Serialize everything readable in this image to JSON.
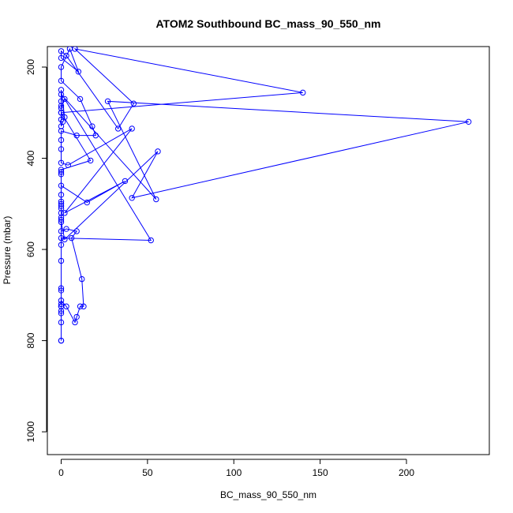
{
  "chart_data": {
    "type": "line",
    "title": "ATOM2 Southbound BC_mass_90_550_nm",
    "xlabel": "BC_mass_90_550_nm",
    "ylabel": "Pressure (mbar)",
    "xlim": [
      -8,
      248
    ],
    "ylim": [
      1050,
      155
    ],
    "y_inverted": true,
    "x_ticks": [
      0,
      50,
      100,
      150,
      200
    ],
    "y_ticks": [
      200,
      400,
      600,
      800,
      1000
    ],
    "grid": false,
    "legend": "none",
    "series_color": "#0000ff",
    "series": [
      {
        "values": [
          [
            0,
            800
          ],
          [
            0,
            800
          ],
          [
            0,
            760
          ],
          [
            0,
            740
          ],
          [
            0,
            735
          ],
          [
            0,
            725
          ],
          [
            0,
            712
          ],
          [
            3,
            725
          ],
          [
            8,
            760
          ],
          [
            9,
            748
          ],
          [
            11,
            725
          ],
          [
            13,
            725
          ],
          [
            12,
            665
          ],
          [
            6,
            575
          ],
          [
            9,
            560
          ],
          [
            3,
            555
          ],
          [
            0,
            560
          ],
          [
            0,
            590
          ],
          [
            0,
            575
          ],
          [
            52,
            580
          ],
          [
            2,
            270
          ],
          [
            0,
            290
          ],
          [
            0,
            260
          ],
          [
            55,
            490
          ],
          [
            27,
            275
          ],
          [
            236,
            320
          ],
          [
            41,
            487
          ],
          [
            56,
            385
          ],
          [
            2,
            578
          ],
          [
            0,
            540
          ],
          [
            0,
            520
          ],
          [
            0,
            505
          ],
          [
            0,
            480
          ],
          [
            0,
            460
          ],
          [
            15,
            497
          ],
          [
            37,
            450
          ],
          [
            2,
            520
          ],
          [
            41,
            335
          ],
          [
            4,
            415
          ],
          [
            0,
            410
          ],
          [
            0,
            380
          ],
          [
            0,
            360
          ],
          [
            0,
            340
          ],
          [
            9,
            350
          ],
          [
            20,
            350
          ],
          [
            18,
            330
          ],
          [
            11,
            270
          ],
          [
            0,
            230
          ],
          [
            0,
            200
          ],
          [
            5,
            160
          ],
          [
            10,
            210
          ],
          [
            0,
            180
          ],
          [
            0,
            165
          ],
          [
            3,
            175
          ],
          [
            33,
            335
          ],
          [
            42,
            280
          ],
          [
            8,
            160
          ],
          [
            140,
            256
          ],
          [
            0,
            300
          ],
          [
            0,
            285
          ],
          [
            0,
            275
          ],
          [
            0,
            250
          ],
          [
            2,
            310
          ],
          [
            1,
            320
          ],
          [
            0,
            330
          ],
          [
            0,
            315
          ],
          [
            0,
            300
          ],
          [
            17,
            405
          ],
          [
            0,
            425
          ],
          [
            0,
            435
          ],
          [
            0,
            430
          ],
          [
            0,
            500
          ],
          [
            0,
            495
          ],
          [
            0,
            510
          ],
          [
            0,
            530
          ],
          [
            0,
            535
          ],
          [
            0,
            625
          ],
          [
            0,
            685
          ],
          [
            0,
            690
          ],
          [
            0,
            720
          ],
          [
            0,
            725
          ]
        ]
      }
    ]
  }
}
